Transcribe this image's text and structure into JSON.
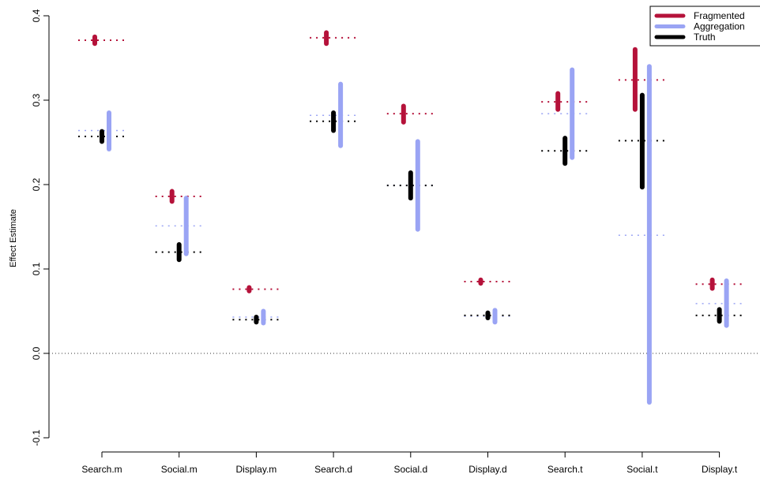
{
  "chart_data": {
    "type": "interval",
    "title": "",
    "xlabel": "",
    "ylabel": "Effect Estimate",
    "ylim": [
      -0.1,
      0.4
    ],
    "yticks": [
      -0.1,
      0.0,
      0.1,
      0.2,
      0.3,
      0.4
    ],
    "ytick_labels": [
      "-0.1",
      "0.0",
      "0.1",
      "0.2",
      "0.3",
      "0.4"
    ],
    "categories": [
      "Search.m",
      "Social.m",
      "Display.m",
      "Search.d",
      "Social.d",
      "Display.d",
      "Search.t",
      "Social.t",
      "Display.t"
    ],
    "reference_line": 0.0,
    "legend_position": "top-right",
    "series": [
      {
        "name": "Fragmented",
        "color": "#b5123a",
        "offset": -1,
        "estimate": [
          0.371,
          0.186,
          0.076,
          0.374,
          0.284,
          0.085,
          0.298,
          0.324,
          0.082
        ],
        "low": [
          0.367,
          0.18,
          0.074,
          0.367,
          0.274,
          0.083,
          0.289,
          0.289,
          0.077
        ],
        "high": [
          0.375,
          0.192,
          0.078,
          0.38,
          0.293,
          0.087,
          0.308,
          0.36,
          0.087
        ]
      },
      {
        "name": "Aggregation",
        "color": "#9aa4f4",
        "offset": 1,
        "estimate": [
          0.264,
          0.151,
          0.043,
          0.282,
          0.199,
          0.044,
          0.284,
          0.14,
          0.059
        ],
        "low": [
          0.242,
          0.118,
          0.036,
          0.246,
          0.147,
          0.037,
          0.232,
          -0.058,
          0.033
        ],
        "high": [
          0.285,
          0.184,
          0.05,
          0.319,
          0.251,
          0.051,
          0.336,
          0.34,
          0.086
        ]
      },
      {
        "name": "Truth",
        "color": "#000000",
        "offset": 0,
        "estimate": [
          0.257,
          0.12,
          0.04,
          0.275,
          0.199,
          0.045,
          0.24,
          0.252,
          0.045
        ],
        "low": [
          0.251,
          0.111,
          0.037,
          0.264,
          0.184,
          0.042,
          0.225,
          0.197,
          0.038
        ],
        "high": [
          0.263,
          0.129,
          0.043,
          0.285,
          0.214,
          0.048,
          0.255,
          0.306,
          0.052
        ]
      }
    ]
  }
}
